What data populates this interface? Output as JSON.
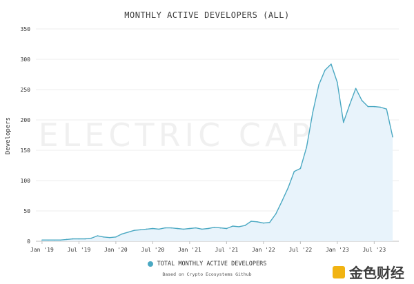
{
  "chart_data": {
    "type": "area",
    "title": "MONTHLY ACTIVE DEVELOPERS (ALL)",
    "ylabel": "Developers",
    "xlabel": "",
    "ylim": [
      0,
      350
    ],
    "yticks": [
      "0",
      "50",
      "100",
      "150",
      "200",
      "250",
      "300",
      "350"
    ],
    "xtick_labels": [
      "Jan '19",
      "Jul '19",
      "Jan '20",
      "Jul '20",
      "Jan '21",
      "Jul '21",
      "Jan '22",
      "Jul '22",
      "Jan '23",
      "Jul '23"
    ],
    "xtick_dates": [
      "2019-01",
      "2019-07",
      "2020-01",
      "2020-07",
      "2021-01",
      "2021-07",
      "2022-01",
      "2022-07",
      "2023-01",
      "2023-07"
    ],
    "grid": true,
    "legend_position": "bottom-center",
    "watermark": "ELECTRIC CAPITAL",
    "source_note": "Based on Crypto Ecosystems Github",
    "series": [
      {
        "name": "TOTAL MONTHLY ACTIVE DEVELOPERS",
        "color": "#4aa8c2",
        "fill": "#e8f3fb",
        "points": [
          [
            "2019-01",
            2
          ],
          [
            "2019-02",
            2
          ],
          [
            "2019-03",
            2
          ],
          [
            "2019-04",
            2
          ],
          [
            "2019-05",
            3
          ],
          [
            "2019-06",
            4
          ],
          [
            "2019-07",
            4
          ],
          [
            "2019-08",
            4
          ],
          [
            "2019-09",
            5
          ],
          [
            "2019-10",
            9
          ],
          [
            "2019-11",
            7
          ],
          [
            "2019-12",
            6
          ],
          [
            "2020-01",
            7
          ],
          [
            "2020-02",
            12
          ],
          [
            "2020-03",
            15
          ],
          [
            "2020-04",
            18
          ],
          [
            "2020-05",
            19
          ],
          [
            "2020-06",
            20
          ],
          [
            "2020-07",
            21
          ],
          [
            "2020-08",
            20
          ],
          [
            "2020-09",
            22
          ],
          [
            "2020-10",
            22
          ],
          [
            "2020-11",
            21
          ],
          [
            "2020-12",
            20
          ],
          [
            "2021-01",
            21
          ],
          [
            "2021-02",
            22
          ],
          [
            "2021-03",
            20
          ],
          [
            "2021-04",
            21
          ],
          [
            "2021-05",
            23
          ],
          [
            "2021-06",
            22
          ],
          [
            "2021-07",
            21
          ],
          [
            "2021-08",
            25
          ],
          [
            "2021-09",
            24
          ],
          [
            "2021-10",
            26
          ],
          [
            "2021-11",
            33
          ],
          [
            "2021-12",
            32
          ],
          [
            "2022-01",
            30
          ],
          [
            "2022-02",
            31
          ],
          [
            "2022-03",
            45
          ],
          [
            "2022-04",
            66
          ],
          [
            "2022-05",
            88
          ],
          [
            "2022-06",
            115
          ],
          [
            "2022-07",
            120
          ],
          [
            "2022-08",
            155
          ],
          [
            "2022-09",
            212
          ],
          [
            "2022-10",
            258
          ],
          [
            "2022-11",
            282
          ],
          [
            "2022-12",
            292
          ],
          [
            "2023-01",
            262
          ],
          [
            "2023-02",
            196
          ],
          [
            "2023-03",
            225
          ],
          [
            "2023-04",
            252
          ],
          [
            "2023-05",
            232
          ],
          [
            "2023-06",
            222
          ],
          [
            "2023-07",
            222
          ],
          [
            "2023-08",
            221
          ],
          [
            "2023-09",
            218
          ],
          [
            "2023-10",
            172
          ]
        ]
      }
    ]
  },
  "logo": {
    "text": "金色财经",
    "color": "#f1b312"
  }
}
